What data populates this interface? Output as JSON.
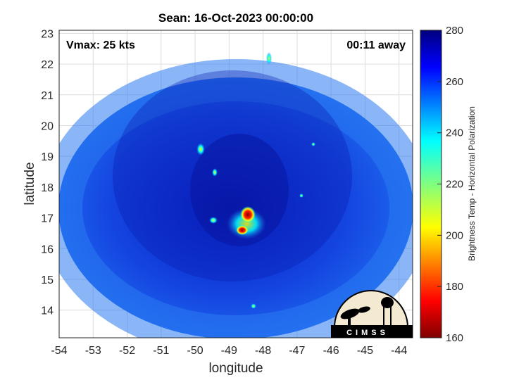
{
  "title": "Sean: 16-Oct-2023 00:00:00",
  "vmax_text": "Vmax: 25 kts",
  "away_text": "00:11 away",
  "xlabel": "longitude",
  "ylabel": "latitude",
  "x_ticks": [
    "-54",
    "-53",
    "-52",
    "-51",
    "-50",
    "-49",
    "-48",
    "-47",
    "-46",
    "-45",
    "-44"
  ],
  "y_ticks": [
    "23",
    "22",
    "21",
    "20",
    "19",
    "18",
    "17",
    "16",
    "15",
    "14"
  ],
  "colorbar": {
    "title": "Brightness Temp - Horizontal Polarization",
    "ticks": [
      "280",
      "260",
      "240",
      "220",
      "200",
      "180",
      "160"
    ],
    "range": [
      160,
      280
    ],
    "colormap": "jet"
  },
  "logo": {
    "text": "CIMSS"
  },
  "map": {
    "xlim": [
      -54,
      -43.6
    ],
    "ylim": [
      13.1,
      23.1
    ],
    "grid": true,
    "swath_center": [
      -48.9,
      18.0
    ],
    "storm_center": [
      -48.4,
      17.1
    ],
    "background_tb": 255,
    "features": [
      {
        "lon": -48.35,
        "lat": 17.1,
        "tb": 165
      },
      {
        "lon": -48.55,
        "lat": 16.55,
        "tb": 195
      },
      {
        "lon": -48.1,
        "lat": 22.15,
        "tb": 215
      },
      {
        "lon": -49.6,
        "lat": 16.85,
        "tb": 232
      },
      {
        "lon": -49.8,
        "lat": 19.2,
        "tb": 235
      }
    ]
  }
}
